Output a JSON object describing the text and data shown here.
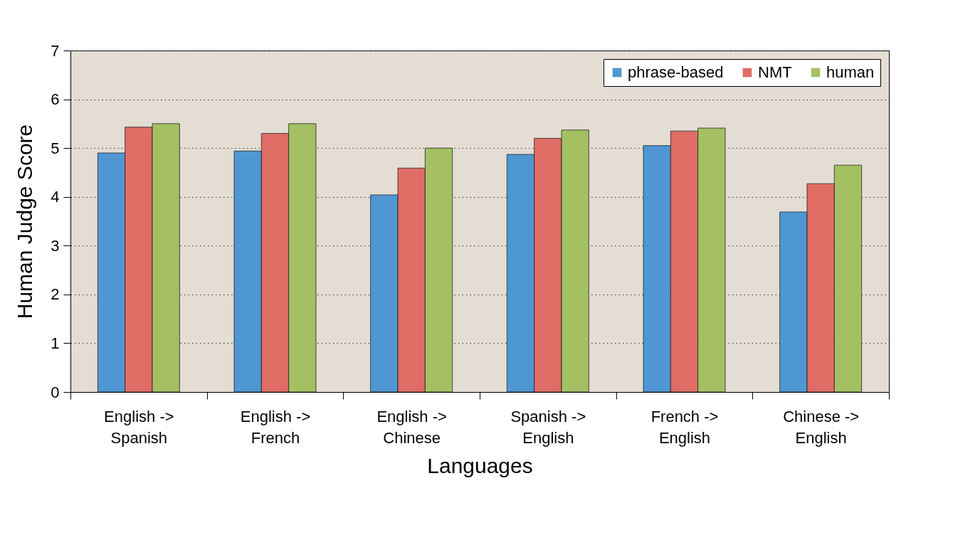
{
  "chart_data": {
    "type": "bar",
    "xlabel": "Languages",
    "ylabel": "Human Judge Score",
    "categories": [
      "English ->\nSpanish",
      "English ->\nFrench",
      "English ->\nChinese",
      "Spanish ->\nEnglish",
      "French ->\nEnglish",
      "Chinese ->\nEnglish"
    ],
    "series": [
      {
        "name": "phrase-based",
        "color": "#4f97d3",
        "values": [
          4.9,
          4.94,
          4.04,
          4.87,
          5.05,
          3.69
        ]
      },
      {
        "name": "NMT",
        "color": "#e06c66",
        "values": [
          5.43,
          5.3,
          4.59,
          5.2,
          5.35,
          4.27
        ]
      },
      {
        "name": "human",
        "color": "#a4c063",
        "values": [
          5.5,
          5.5,
          5.0,
          5.37,
          5.41,
          4.65
        ]
      }
    ],
    "ylim": [
      0,
      7
    ],
    "yticks": [
      0,
      1,
      2,
      3,
      4,
      5,
      6,
      7
    ],
    "grid": "y",
    "legend": "top right"
  }
}
